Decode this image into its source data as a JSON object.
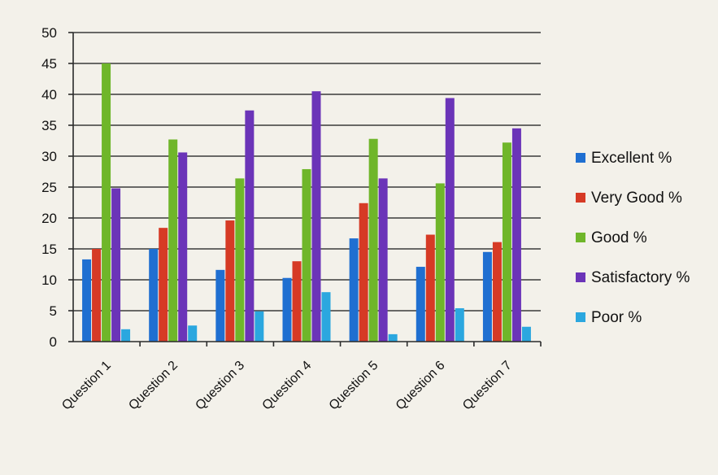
{
  "chart_data": {
    "type": "bar",
    "categories": [
      "Question 1",
      "Question 2",
      "Question 3",
      "Question 4",
      "Question 5",
      "Question 6",
      "Question 7"
    ],
    "series": [
      {
        "name": "Excellent %",
        "color": "#1f6fd1",
        "values": [
          13.3,
          15,
          11.6,
          10.3,
          16.7,
          12.1,
          14.5
        ]
      },
      {
        "name": "Very Good %",
        "color": "#d63a25",
        "values": [
          15,
          18.4,
          19.6,
          13,
          22.4,
          17.3,
          16.1
        ]
      },
      {
        "name": "Good %",
        "color": "#6fb62a",
        "values": [
          45,
          32.7,
          26.4,
          27.9,
          32.8,
          25.6,
          32.2
        ]
      },
      {
        "name": "Satisfactory %",
        "color": "#6b34b8",
        "values": [
          24.8,
          30.6,
          37.4,
          40.5,
          26.4,
          39.4,
          34.5
        ]
      },
      {
        "name": "Poor %",
        "color": "#2ba7df",
        "values": [
          2,
          2.6,
          4.9,
          8,
          1.2,
          5.4,
          2.4
        ]
      }
    ],
    "yticks": [
      0,
      5,
      10,
      15,
      20,
      25,
      30,
      35,
      40,
      45,
      50
    ],
    "ylim": [
      0,
      50
    ],
    "grid": true,
    "legend_position": "right"
  }
}
